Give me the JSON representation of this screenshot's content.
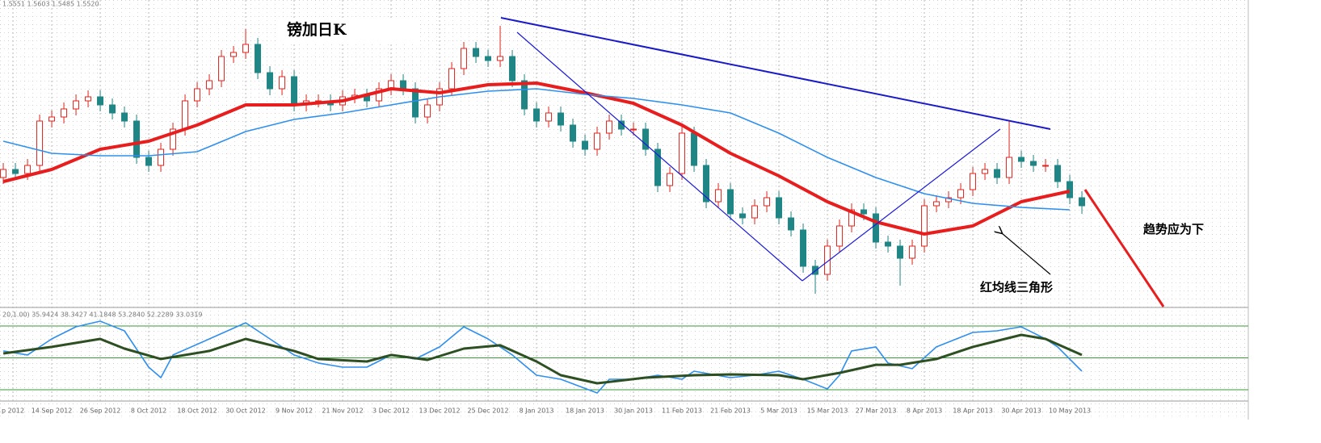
{
  "chart_data": {
    "type": "candlestick",
    "title": "镑加日K",
    "header": "1.5551 1.5603 1.5485 1.5520",
    "annotations": [
      "趋势应为下",
      "红均线三角形"
    ],
    "up_color": "#e0231c",
    "down_color": "#1f8585",
    "grid": true,
    "ylim": [
      1.48,
      1.666
    ],
    "xlim": [
      -0.27,
      102.73
    ],
    "open": [
      1.56,
      1.565,
      1.5625,
      1.5675,
      1.595,
      1.5975,
      1.6025,
      1.6075,
      1.61,
      1.605,
      1.6,
      1.595,
      1.5725,
      1.5675,
      1.5775,
      1.59,
      1.6075,
      1.615,
      1.62,
      1.635,
      1.6375,
      1.6425,
      1.625,
      1.615,
      1.6225,
      1.605,
      1.6075,
      1.6075,
      1.605,
      1.61,
      1.611,
      1.6075,
      1.615,
      1.62,
      1.615,
      1.5975,
      1.605,
      1.615,
      1.6275,
      1.64,
      1.635,
      1.6325,
      1.635,
      1.62,
      1.6025,
      1.595,
      1.6,
      1.5925,
      1.5825,
      1.5775,
      1.5875,
      1.595,
      1.59,
      1.59,
      1.5775,
      1.555,
      1.5625,
      1.5875,
      1.5675,
      1.545,
      1.5525,
      1.5375,
      1.535,
      1.5425,
      1.5475,
      1.535,
      1.5275,
      1.505,
      1.5,
      1.5175,
      1.53,
      1.54,
      1.5375,
      1.52,
      1.5175,
      1.51,
      1.5175,
      1.5425,
      1.545,
      1.5475,
      1.5525,
      1.5625,
      1.565,
      1.56,
      1.5725,
      1.57,
      1.5675,
      1.5675,
      1.5575,
      1.5475
    ],
    "high": [
      1.569,
      1.569,
      1.5715,
      1.599,
      1.6015,
      1.6065,
      1.6115,
      1.614,
      1.614,
      1.609,
      1.604,
      1.599,
      1.5765,
      1.5815,
      1.594,
      1.6115,
      1.619,
      1.624,
      1.639,
      1.6415,
      1.652,
      1.6465,
      1.629,
      1.6265,
      1.6265,
      1.6115,
      1.6115,
      1.6115,
      1.614,
      1.615,
      1.615,
      1.619,
      1.624,
      1.624,
      1.619,
      1.609,
      1.619,
      1.6315,
      1.644,
      1.644,
      1.639,
      1.654,
      1.639,
      1.624,
      1.6065,
      1.604,
      1.604,
      1.5965,
      1.5865,
      1.5915,
      1.599,
      1.599,
      1.594,
      1.594,
      1.5815,
      1.5665,
      1.5915,
      1.5915,
      1.5715,
      1.5565,
      1.5565,
      1.5415,
      1.5465,
      1.5515,
      1.5515,
      1.539,
      1.5315,
      1.509,
      1.5215,
      1.534,
      1.544,
      1.544,
      1.5415,
      1.524,
      1.5215,
      1.5215,
      1.5465,
      1.549,
      1.5515,
      1.5565,
      1.5665,
      1.569,
      1.569,
      1.595,
      1.5765,
      1.574,
      1.5715,
      1.5715,
      1.5615,
      1.5515
    ],
    "low": [
      1.556,
      1.5585,
      1.5585,
      1.5635,
      1.591,
      1.5935,
      1.5985,
      1.6035,
      1.601,
      1.596,
      1.591,
      1.5685,
      1.5635,
      1.5635,
      1.5735,
      1.586,
      1.6035,
      1.611,
      1.616,
      1.631,
      1.6335,
      1.621,
      1.611,
      1.611,
      1.601,
      1.601,
      1.6035,
      1.601,
      1.601,
      1.606,
      1.6035,
      1.6035,
      1.611,
      1.611,
      1.5935,
      1.5935,
      1.601,
      1.611,
      1.6235,
      1.631,
      1.6285,
      1.6285,
      1.616,
      1.5985,
      1.591,
      1.591,
      1.5885,
      1.5785,
      1.5735,
      1.5735,
      1.5835,
      1.586,
      1.586,
      1.5735,
      1.551,
      1.551,
      1.5585,
      1.5635,
      1.541,
      1.541,
      1.5335,
      1.531,
      1.531,
      1.5385,
      1.531,
      1.5235,
      1.501,
      1.488,
      1.496,
      1.5135,
      1.526,
      1.5335,
      1.516,
      1.5135,
      1.493,
      1.506,
      1.5135,
      1.5385,
      1.541,
      1.5435,
      1.5485,
      1.5585,
      1.556,
      1.556,
      1.566,
      1.5635,
      1.5635,
      1.5535,
      1.5435,
      1.5375
    ],
    "close": [
      1.565,
      1.5625,
      1.5675,
      1.595,
      1.5975,
      1.6025,
      1.6075,
      1.61,
      1.605,
      1.6,
      1.595,
      1.5725,
      1.5675,
      1.5775,
      1.59,
      1.6075,
      1.615,
      1.62,
      1.635,
      1.6375,
      1.6425,
      1.625,
      1.615,
      1.6225,
      1.605,
      1.6075,
      1.6075,
      1.605,
      1.61,
      1.611,
      1.6075,
      1.615,
      1.62,
      1.615,
      1.5975,
      1.605,
      1.615,
      1.6275,
      1.64,
      1.635,
      1.6325,
      1.635,
      1.62,
      1.6025,
      1.595,
      1.6,
      1.5925,
      1.5825,
      1.5775,
      1.5875,
      1.595,
      1.59,
      1.59,
      1.5775,
      1.555,
      1.5625,
      1.5875,
      1.5675,
      1.545,
      1.5525,
      1.5375,
      1.535,
      1.5425,
      1.5475,
      1.535,
      1.5275,
      1.505,
      1.5,
      1.5175,
      1.53,
      1.54,
      1.5375,
      1.52,
      1.5175,
      1.51,
      1.5175,
      1.5425,
      1.545,
      1.5475,
      1.5525,
      1.5625,
      1.565,
      1.56,
      1.5725,
      1.57,
      1.5675,
      1.5675,
      1.5575,
      1.5475,
      1.5425
    ],
    "moving_averages": [
      {
        "color": "#e81d1d",
        "width": 4,
        "x": [
          0,
          4,
          8,
          12,
          16,
          20,
          24,
          28,
          32,
          36,
          40,
          44,
          48,
          52,
          56,
          60,
          64,
          68,
          72,
          76,
          80,
          84,
          88
        ],
        "values": [
          1.5575,
          1.565,
          1.5775,
          1.5825,
          1.5925,
          1.605,
          1.605,
          1.6075,
          1.615,
          1.6125,
          1.6175,
          1.6185,
          1.6125,
          1.606,
          1.5925,
          1.575,
          1.561,
          1.545,
          1.5325,
          1.525,
          1.53,
          1.545,
          1.5515
        ]
      },
      {
        "color": "#2e90ee",
        "width": 1.6,
        "x": [
          0,
          4,
          8,
          12,
          16,
          20,
          24,
          28,
          32,
          36,
          40,
          44,
          48,
          52,
          56,
          60,
          64,
          68,
          72,
          76,
          80,
          84,
          88
        ],
        "values": [
          1.5825,
          1.575,
          1.5735,
          1.5735,
          1.576,
          1.5885,
          1.596,
          1.6,
          1.605,
          1.61,
          1.6135,
          1.615,
          1.6115,
          1.609,
          1.605,
          1.6,
          1.5875,
          1.5725,
          1.56,
          1.55,
          1.544,
          1.5415,
          1.54
        ]
      }
    ],
    "oscillator": {
      "header": "20,1.00) 35.9424 38.3427 41.1848 53.2840 52.2289 33.0319",
      "ylim": [
        10.9,
        94.4
      ],
      "levels": [
        20,
        50,
        80
      ],
      "level_color": "#3a9a3a",
      "series": [
        {
          "color": "#2f8fef",
          "width": 1.6,
          "x": [
            0,
            2,
            4,
            6,
            8,
            10,
            12,
            13,
            14,
            17,
            20,
            22,
            24,
            26,
            28,
            30,
            32,
            34,
            36,
            38,
            40,
            42,
            44,
            46,
            49,
            50,
            52,
            54,
            56,
            57,
            60,
            62,
            64,
            66,
            68,
            69,
            70,
            72,
            73,
            75,
            77,
            80,
            82,
            84,
            86,
            87,
            89
          ],
          "values": [
            56.5,
            52.7,
            67.8,
            79.2,
            84.5,
            75.4,
            41.3,
            31.4,
            52.7,
            67.8,
            83.0,
            67.8,
            52.7,
            45.1,
            41.3,
            41.3,
            52.7,
            48.9,
            60.3,
            79.2,
            67.8,
            52.7,
            33.7,
            29.9,
            17.0,
            29.9,
            29.9,
            33.7,
            29.9,
            37.5,
            31.4,
            33.7,
            37.5,
            29.9,
            20.8,
            33.7,
            56.5,
            60.3,
            45.1,
            39.8,
            60.3,
            73.9,
            75.4,
            79.2,
            67.8,
            60.3,
            37.5
          ]
        },
        {
          "color": "#2d4f22",
          "width": 3,
          "x": [
            0,
            4,
            8,
            10,
            13,
            17,
            20,
            24,
            26,
            30,
            32,
            35,
            38,
            41,
            44,
            46,
            49,
            53,
            57,
            60,
            64,
            66,
            69,
            72,
            74,
            77,
            80,
            84,
            86,
            89
          ],
          "values": [
            54.2,
            60.3,
            67.8,
            58.7,
            48.9,
            56.5,
            67.8,
            56.5,
            48.9,
            46.6,
            52.7,
            48.1,
            58.7,
            61.8,
            46.6,
            33.7,
            26.1,
            31.4,
            33.7,
            34.4,
            33.7,
            29.9,
            35.9,
            43.5,
            43.5,
            48.9,
            60.3,
            71.6,
            67.8,
            52.7
          ]
        }
      ]
    },
    "xticks": [
      {
        "value": 0.8,
        "label": "p 2012"
      },
      {
        "value": 4,
        "label": "14 Sep 2012"
      },
      {
        "value": 8,
        "label": "26 Sep 2012"
      },
      {
        "value": 12,
        "label": "8 Oct 2012"
      },
      {
        "value": 16,
        "label": "18 Oct 2012"
      },
      {
        "value": 20,
        "label": "30 Oct 2012"
      },
      {
        "value": 24,
        "label": "9 Nov 2012"
      },
      {
        "value": 28,
        "label": "21 Nov 2012"
      },
      {
        "value": 32,
        "label": "3 Dec 2012"
      },
      {
        "value": 36,
        "label": "13 Dec 2012"
      },
      {
        "value": 40,
        "label": "25 Dec 2012"
      },
      {
        "value": 44,
        "label": "8 Jan 2013"
      },
      {
        "value": 48,
        "label": "18 Jan 2013"
      },
      {
        "value": 52,
        "label": "30 Jan 2013"
      },
      {
        "value": 56,
        "label": "11 Feb 2013"
      },
      {
        "value": 60,
        "label": "21 Feb 2013"
      },
      {
        "value": 64,
        "label": "5 Mar 2013"
      },
      {
        "value": 68,
        "label": "15 Mar 2013"
      },
      {
        "value": 72,
        "label": "27 Mar 2013"
      },
      {
        "value": 76,
        "label": "8 Apr 2013"
      },
      {
        "value": 80,
        "label": "18 Apr 2013"
      },
      {
        "value": 84,
        "label": "30 Apr 2013"
      },
      {
        "value": 88,
        "label": "10 May 2013"
      }
    ]
  }
}
